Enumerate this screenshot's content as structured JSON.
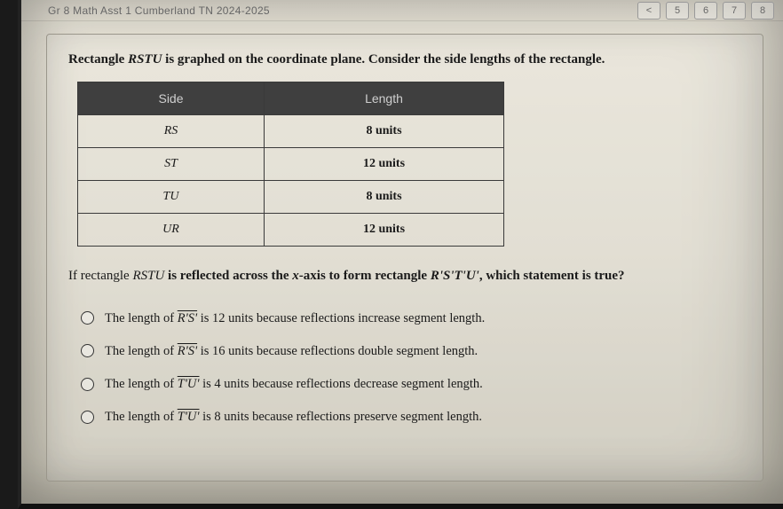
{
  "topbar": {
    "title": "Gr 8 Math Asst 1 Cumberland TN 2024-2025",
    "pages": [
      "<",
      "5",
      "6",
      "7",
      "8"
    ]
  },
  "prompt": {
    "prefix": "Rectangle ",
    "var": "RSTU",
    "suffix": " is graphed on the coordinate plane. Consider the side lengths of the rectangle."
  },
  "table": {
    "headers": [
      "Side",
      "Length"
    ],
    "rows": [
      {
        "side": "RS",
        "length": "8 units"
      },
      {
        "side": "ST",
        "length": "12 units"
      },
      {
        "side": "TU",
        "length": "8 units"
      },
      {
        "side": "UR",
        "length": "12 units"
      }
    ]
  },
  "question": {
    "p1": "If rectangle ",
    "v1": "RSTU",
    "p2": " is reflected across the ",
    "axis": "x",
    "p3": "-axis to form rectangle ",
    "v2": "R'S'T'U'",
    "p4": ", which statement is true?"
  },
  "options": [
    {
      "pre": "The length of ",
      "seg": "R'S'",
      "post": " is 12 units because reflections increase segment length."
    },
    {
      "pre": "The length of ",
      "seg": "R'S'",
      "post": " is 16 units because reflections double segment length."
    },
    {
      "pre": "The length of ",
      "seg": "T'U'",
      "post": " is 4 units because reflections decrease segment length."
    },
    {
      "pre": "The length of ",
      "seg": "T'U'",
      "post": " is 8 units because reflections preserve segment length."
    }
  ],
  "colors": {
    "page_bg_top": "#e8e4d8",
    "page_bg_bottom": "#c8c4b6",
    "table_header_bg": "#3f3f3f",
    "table_border": "#3a3a3a",
    "panel_border": "#9a968b"
  }
}
